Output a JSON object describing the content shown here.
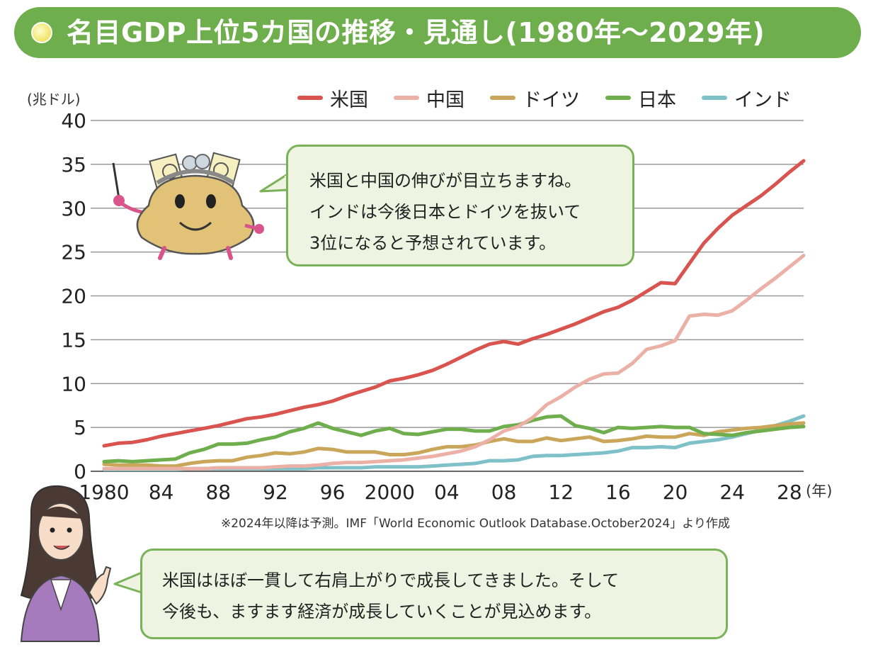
{
  "title": "名目GDP上位5カ国の推移・見通し(1980年～2029年)",
  "unit": "(兆ドル)",
  "x_unit": "(年)",
  "note": "※2024年以降は予測。IMF「World Economic Outlook Database.October2024」より作成",
  "bubble_top": [
    "米国と中国の伸びが目立ちますね。",
    "インドは今後日本とドイツを抜いて",
    "3位になると予想されています。"
  ],
  "bubble_bottom": [
    "米国はほぼ一貫して右肩上がりで成長してきました。そして",
    "今後も、ますます経済が成長していくことが見込めます。"
  ],
  "colors": {
    "title_bg": "#6fae4c",
    "usa": "#d9534f",
    "china": "#ecb1a6",
    "germany": "#c9a659",
    "japan": "#6fae4c",
    "india": "#7fc1c8",
    "bubble_bg": "#eef4e1",
    "bubble_border": "#7ab25a"
  },
  "icons": [
    "purse-mascot-icon",
    "woman-pointing-icon"
  ],
  "chart_data": {
    "type": "line",
    "xlabel": "(年)",
    "ylabel": "(兆ドル)",
    "ylim": [
      0,
      40
    ],
    "xlim": [
      1980,
      2029
    ],
    "yticks": [
      "0",
      "5",
      "10",
      "15",
      "20",
      "25",
      "30",
      "35",
      "40"
    ],
    "xticks": [
      {
        "year": 1980,
        "label": "1980"
      },
      {
        "year": 1984,
        "label": "84"
      },
      {
        "year": 1988,
        "label": "88"
      },
      {
        "year": 1992,
        "label": "92"
      },
      {
        "year": 1996,
        "label": "96"
      },
      {
        "year": 2000,
        "label": "2000"
      },
      {
        "year": 2004,
        "label": "04"
      },
      {
        "year": 2008,
        "label": "08"
      },
      {
        "year": 2012,
        "label": "12"
      },
      {
        "year": 2016,
        "label": "16"
      },
      {
        "year": 2020,
        "label": "20"
      },
      {
        "year": 2024,
        "label": "24"
      },
      {
        "year": 2028,
        "label": "28"
      }
    ],
    "grid": true,
    "legend": "top-right",
    "x": [
      1980,
      1981,
      1982,
      1983,
      1984,
      1985,
      1986,
      1987,
      1988,
      1989,
      1990,
      1991,
      1992,
      1993,
      1994,
      1995,
      1996,
      1997,
      1998,
      1999,
      2000,
      2001,
      2002,
      2003,
      2004,
      2005,
      2006,
      2007,
      2008,
      2009,
      2010,
      2011,
      2012,
      2013,
      2014,
      2015,
      2016,
      2017,
      2018,
      2019,
      2020,
      2021,
      2022,
      2023,
      2024,
      2025,
      2026,
      2027,
      2028,
      2029
    ],
    "series": [
      {
        "name": "米国",
        "color": "#d9534f",
        "values": [
          2.9,
          3.2,
          3.3,
          3.6,
          4.0,
          4.3,
          4.6,
          4.9,
          5.2,
          5.6,
          6.0,
          6.2,
          6.5,
          6.9,
          7.3,
          7.6,
          8.0,
          8.6,
          9.1,
          9.6,
          10.3,
          10.6,
          11.0,
          11.5,
          12.2,
          13.0,
          13.8,
          14.5,
          14.8,
          14.5,
          15.1,
          15.6,
          16.2,
          16.8,
          17.5,
          18.2,
          18.7,
          19.5,
          20.5,
          21.5,
          21.4,
          23.7,
          26.0,
          27.7,
          29.2,
          30.3,
          31.4,
          32.7,
          34.1,
          35.4
        ]
      },
      {
        "name": "中国",
        "color": "#ecb1a6",
        "values": [
          0.3,
          0.3,
          0.3,
          0.3,
          0.3,
          0.3,
          0.3,
          0.3,
          0.4,
          0.4,
          0.4,
          0.4,
          0.5,
          0.6,
          0.6,
          0.7,
          0.9,
          1.0,
          1.0,
          1.1,
          1.2,
          1.3,
          1.5,
          1.7,
          2.0,
          2.3,
          2.8,
          3.6,
          4.6,
          5.1,
          6.1,
          7.6,
          8.5,
          9.6,
          10.5,
          11.1,
          11.2,
          12.3,
          13.9,
          14.3,
          14.9,
          17.7,
          17.9,
          17.8,
          18.3,
          19.5,
          20.8,
          22.0,
          23.3,
          24.6
        ]
      },
      {
        "name": "ドイツ",
        "color": "#c9a659",
        "values": [
          0.8,
          0.7,
          0.7,
          0.7,
          0.6,
          0.6,
          0.9,
          1.1,
          1.2,
          1.2,
          1.6,
          1.8,
          2.1,
          2.0,
          2.2,
          2.6,
          2.5,
          2.2,
          2.2,
          2.2,
          1.9,
          1.9,
          2.1,
          2.5,
          2.8,
          2.8,
          3.0,
          3.4,
          3.7,
          3.4,
          3.4,
          3.8,
          3.5,
          3.7,
          3.9,
          3.4,
          3.5,
          3.7,
          4.0,
          3.9,
          3.9,
          4.3,
          4.1,
          4.5,
          4.7,
          4.9,
          5.0,
          5.2,
          5.4,
          5.5
        ]
      },
      {
        "name": "日本",
        "color": "#6fae4c",
        "values": [
          1.1,
          1.2,
          1.1,
          1.2,
          1.3,
          1.4,
          2.1,
          2.5,
          3.1,
          3.1,
          3.2,
          3.6,
          3.9,
          4.5,
          4.9,
          5.5,
          4.9,
          4.5,
          4.1,
          4.6,
          4.9,
          4.3,
          4.2,
          4.5,
          4.8,
          4.8,
          4.6,
          4.6,
          5.1,
          5.3,
          5.8,
          6.2,
          6.3,
          5.2,
          4.9,
          4.4,
          5.0,
          4.9,
          5.0,
          5.1,
          5.0,
          5.0,
          4.3,
          4.2,
          4.1,
          4.4,
          4.6,
          4.8,
          5.0,
          5.1
        ]
      },
      {
        "name": "インド",
        "color": "#7fc1c8",
        "values": [
          0.2,
          0.2,
          0.2,
          0.2,
          0.2,
          0.2,
          0.3,
          0.3,
          0.3,
          0.3,
          0.3,
          0.3,
          0.3,
          0.3,
          0.3,
          0.4,
          0.4,
          0.4,
          0.4,
          0.5,
          0.5,
          0.5,
          0.5,
          0.6,
          0.7,
          0.8,
          0.9,
          1.2,
          1.2,
          1.3,
          1.7,
          1.8,
          1.8,
          1.9,
          2.0,
          2.1,
          2.3,
          2.7,
          2.7,
          2.8,
          2.7,
          3.2,
          3.4,
          3.6,
          3.9,
          4.3,
          4.7,
          5.2,
          5.7,
          6.3
        ]
      }
    ]
  }
}
